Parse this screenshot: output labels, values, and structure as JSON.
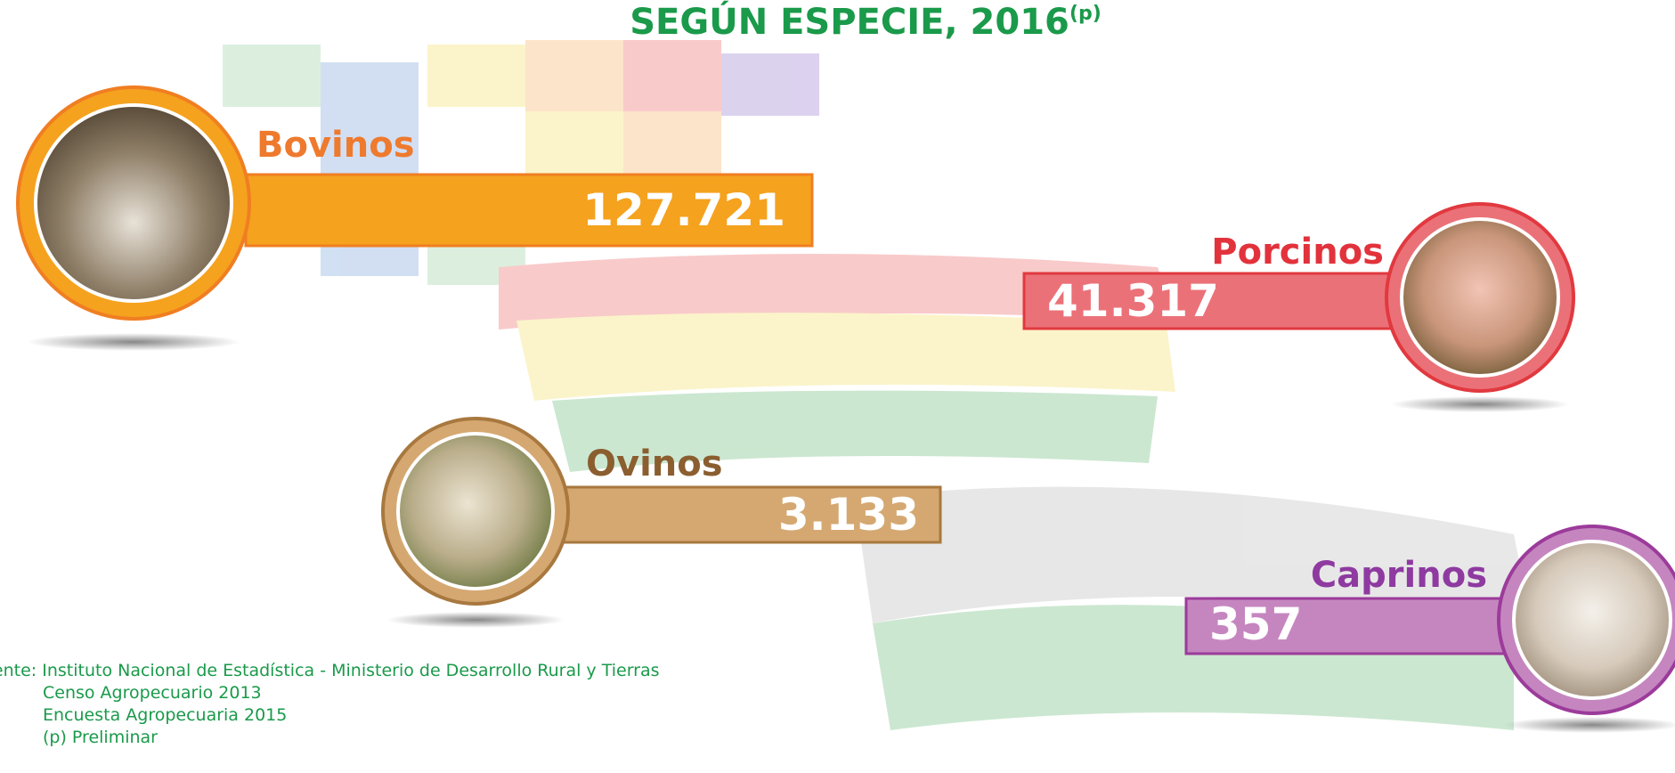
{
  "header": {
    "title": "SEGÚN ESPECIE, 2016",
    "title_note": "(p)"
  },
  "items": [
    {
      "name": "Bovinos",
      "value": "127.721"
    },
    {
      "name": "Porcinos",
      "value": "41.317"
    },
    {
      "name": "Ovinos",
      "value": "3.133"
    },
    {
      "name": "Caprinos",
      "value": "357"
    }
  ],
  "sources": [
    "Fuente: Instituto Nacional de Estadística - Ministerio de Desarrollo Rural y Tierras",
    "Censo Agropecuario 2013",
    "Encuesta Agropecuaria 2015",
    "(p) Preliminar"
  ]
}
